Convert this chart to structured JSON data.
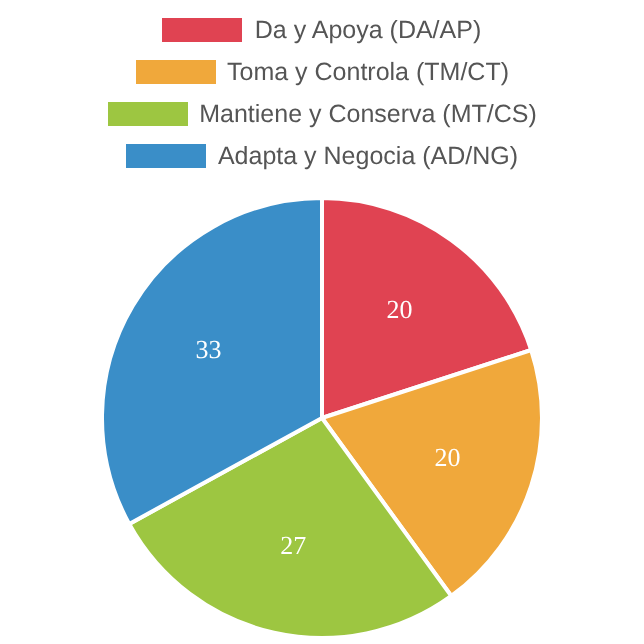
{
  "chart_data": {
    "type": "pie",
    "categories": [
      "Da y Apoya (DA/AP)",
      "Toma y Controla (TM/CT)",
      "Mantiene y Conserva (MT/CS)",
      "Adapta y Negocia (AD/NG)"
    ],
    "values": [
      20,
      20,
      27,
      33
    ],
    "colors": [
      "#e04352",
      "#f0a83b",
      "#9dc641",
      "#3a8ec8"
    ],
    "data_labels": true,
    "legend": "top"
  }
}
